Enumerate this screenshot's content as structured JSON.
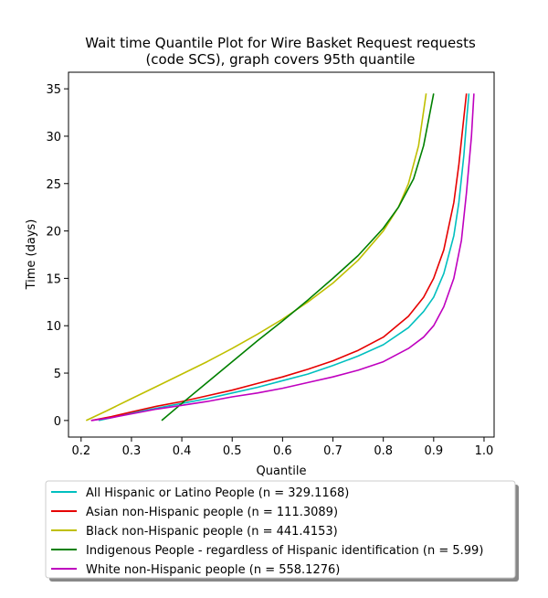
{
  "chart_data": {
    "type": "line",
    "title_lines": [
      "Wait time Quantile Plot for Wire Basket Request  requests",
      "(code SCS), graph covers 95th quantile"
    ],
    "xlabel": "Quantile",
    "ylabel": "Time (days)",
    "xlim": [
      0.175,
      1.02
    ],
    "ylim": [
      -1.75,
      36.75
    ],
    "xticks": [
      0.2,
      0.3,
      0.4,
      0.5,
      0.6,
      0.7,
      0.8,
      0.9,
      1.0
    ],
    "xtick_labels": [
      "0.2",
      "0.3",
      "0.4",
      "0.5",
      "0.6",
      "0.7",
      "0.8",
      "0.9",
      "1.0"
    ],
    "yticks": [
      0,
      5,
      10,
      15,
      20,
      25,
      30,
      35
    ],
    "ytick_labels": [
      "0",
      "5",
      "10",
      "15",
      "20",
      "25",
      "30",
      "35"
    ],
    "grid": false,
    "legend_position": "below plot",
    "series": [
      {
        "name": "All Hispanic or Latino People (n = 329.1168)",
        "color": "#00bfbf",
        "points": [
          [
            0.235,
            0
          ],
          [
            0.26,
            0.3
          ],
          [
            0.3,
            0.8
          ],
          [
            0.35,
            1.3
          ],
          [
            0.4,
            1.8
          ],
          [
            0.45,
            2.3
          ],
          [
            0.5,
            2.9
          ],
          [
            0.55,
            3.5
          ],
          [
            0.6,
            4.2
          ],
          [
            0.65,
            4.9
          ],
          [
            0.7,
            5.8
          ],
          [
            0.75,
            6.8
          ],
          [
            0.8,
            8.0
          ],
          [
            0.85,
            9.8
          ],
          [
            0.88,
            11.5
          ],
          [
            0.9,
            13.0
          ],
          [
            0.92,
            15.5
          ],
          [
            0.94,
            19.5
          ],
          [
            0.95,
            23.0
          ],
          [
            0.96,
            28.0
          ],
          [
            0.965,
            31.5
          ],
          [
            0.97,
            34.5
          ]
        ]
      },
      {
        "name": "Asian non-Hispanic people (n = 111.3089)",
        "color": "#e60000",
        "points": [
          [
            0.22,
            0
          ],
          [
            0.26,
            0.4
          ],
          [
            0.3,
            0.9
          ],
          [
            0.35,
            1.5
          ],
          [
            0.4,
            2.0
          ],
          [
            0.45,
            2.6
          ],
          [
            0.5,
            3.2
          ],
          [
            0.55,
            3.9
          ],
          [
            0.6,
            4.6
          ],
          [
            0.65,
            5.4
          ],
          [
            0.7,
            6.3
          ],
          [
            0.75,
            7.4
          ],
          [
            0.8,
            8.8
          ],
          [
            0.85,
            11.0
          ],
          [
            0.88,
            13.0
          ],
          [
            0.9,
            15.0
          ],
          [
            0.92,
            18.0
          ],
          [
            0.94,
            23.0
          ],
          [
            0.95,
            27.0
          ],
          [
            0.96,
            32.0
          ],
          [
            0.965,
            34.5
          ]
        ]
      },
      {
        "name": "Black non-Hispanic people (n = 441.4153)",
        "color": "#bfbf00",
        "points": [
          [
            0.21,
            0
          ],
          [
            0.25,
            1.0
          ],
          [
            0.3,
            2.3
          ],
          [
            0.35,
            3.6
          ],
          [
            0.4,
            4.9
          ],
          [
            0.45,
            6.2
          ],
          [
            0.5,
            7.6
          ],
          [
            0.55,
            9.1
          ],
          [
            0.6,
            10.7
          ],
          [
            0.65,
            12.5
          ],
          [
            0.7,
            14.5
          ],
          [
            0.75,
            16.9
          ],
          [
            0.8,
            20.0
          ],
          [
            0.83,
            22.5
          ],
          [
            0.85,
            25.0
          ],
          [
            0.87,
            29.0
          ],
          [
            0.885,
            34.5
          ]
        ]
      },
      {
        "name": "Indigenous People - regardless of Hispanic identification (n = 5.99)",
        "color": "#008000",
        "points": [
          [
            0.36,
            0
          ],
          [
            0.4,
            1.8
          ],
          [
            0.45,
            4.0
          ],
          [
            0.5,
            6.2
          ],
          [
            0.55,
            8.4
          ],
          [
            0.6,
            10.5
          ],
          [
            0.65,
            12.7
          ],
          [
            0.7,
            15.0
          ],
          [
            0.75,
            17.4
          ],
          [
            0.8,
            20.3
          ],
          [
            0.83,
            22.5
          ],
          [
            0.86,
            25.5
          ],
          [
            0.88,
            29.0
          ],
          [
            0.9,
            34.5
          ]
        ]
      },
      {
        "name": "White non-Hispanic people (n = 558.1276)",
        "color": "#bf00bf",
        "points": [
          [
            0.22,
            0
          ],
          [
            0.26,
            0.3
          ],
          [
            0.3,
            0.7
          ],
          [
            0.35,
            1.2
          ],
          [
            0.4,
            1.6
          ],
          [
            0.45,
            2.0
          ],
          [
            0.5,
            2.5
          ],
          [
            0.55,
            2.9
          ],
          [
            0.6,
            3.4
          ],
          [
            0.65,
            4.0
          ],
          [
            0.7,
            4.6
          ],
          [
            0.75,
            5.3
          ],
          [
            0.8,
            6.2
          ],
          [
            0.85,
            7.6
          ],
          [
            0.88,
            8.8
          ],
          [
            0.9,
            10.0
          ],
          [
            0.92,
            12.0
          ],
          [
            0.94,
            15.0
          ],
          [
            0.955,
            19.0
          ],
          [
            0.965,
            24.0
          ],
          [
            0.975,
            30.0
          ],
          [
            0.98,
            34.5
          ]
        ]
      }
    ]
  }
}
